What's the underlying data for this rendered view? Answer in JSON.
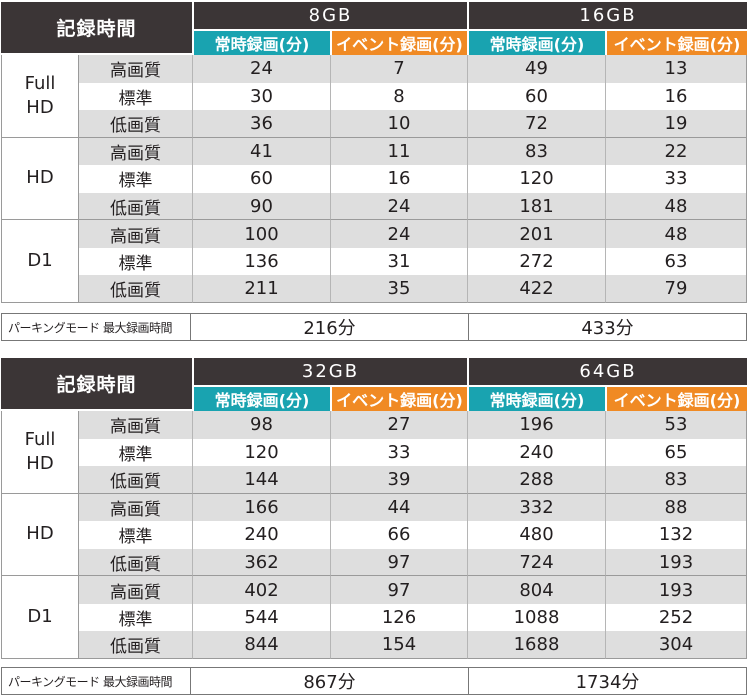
{
  "tables": [
    {
      "header_label": "記録時間",
      "capacities": [
        "8GB",
        "16GB"
      ],
      "mode_labels": [
        "常時録画(分)",
        "イベント録画(分)"
      ],
      "groups": [
        {
          "resolution": "Full\nHD",
          "rows": [
            {
              "quality": "高画質",
              "values": [
                "24",
                "7",
                "49",
                "13"
              ]
            },
            {
              "quality": "標準",
              "values": [
                "30",
                "8",
                "60",
                "16"
              ]
            },
            {
              "quality": "低画質",
              "values": [
                "36",
                "10",
                "72",
                "19"
              ]
            }
          ]
        },
        {
          "resolution": "HD",
          "rows": [
            {
              "quality": "高画質",
              "values": [
                "41",
                "11",
                "83",
                "22"
              ]
            },
            {
              "quality": "標準",
              "values": [
                "60",
                "16",
                "120",
                "33"
              ]
            },
            {
              "quality": "低画質",
              "values": [
                "90",
                "24",
                "181",
                "48"
              ]
            }
          ]
        },
        {
          "resolution": "D1",
          "rows": [
            {
              "quality": "高画質",
              "values": [
                "100",
                "24",
                "201",
                "48"
              ]
            },
            {
              "quality": "標準",
              "values": [
                "136",
                "31",
                "272",
                "63"
              ]
            },
            {
              "quality": "低画質",
              "values": [
                "211",
                "35",
                "422",
                "79"
              ]
            }
          ]
        }
      ],
      "parking": {
        "label": "パーキングモード 最大録画時間",
        "values": [
          "216分",
          "433分"
        ]
      }
    },
    {
      "header_label": "記録時間",
      "capacities": [
        "32GB",
        "64GB"
      ],
      "mode_labels": [
        "常時録画(分)",
        "イベント録画(分)"
      ],
      "groups": [
        {
          "resolution": "Full\nHD",
          "rows": [
            {
              "quality": "高画質",
              "values": [
                "98",
                "27",
                "196",
                "53"
              ]
            },
            {
              "quality": "標準",
              "values": [
                "120",
                "33",
                "240",
                "65"
              ]
            },
            {
              "quality": "低画質",
              "values": [
                "144",
                "39",
                "288",
                "83"
              ]
            }
          ]
        },
        {
          "resolution": "HD",
          "rows": [
            {
              "quality": "高画質",
              "values": [
                "166",
                "44",
                "332",
                "88"
              ]
            },
            {
              "quality": "標準",
              "values": [
                "240",
                "66",
                "480",
                "132"
              ]
            },
            {
              "quality": "低画質",
              "values": [
                "362",
                "97",
                "724",
                "193"
              ]
            }
          ]
        },
        {
          "resolution": "D1",
          "rows": [
            {
              "quality": "高画質",
              "values": [
                "402",
                "97",
                "804",
                "193"
              ]
            },
            {
              "quality": "標準",
              "values": [
                "544",
                "126",
                "1088",
                "252"
              ]
            },
            {
              "quality": "低画質",
              "values": [
                "844",
                "154",
                "1688",
                "304"
              ]
            }
          ]
        }
      ],
      "parking": {
        "label": "パーキングモード 最大録画時間",
        "values": [
          "867分",
          "1734分"
        ]
      }
    }
  ],
  "colors": {
    "header_dark": "#3b3536",
    "constant_teal": "#19a3b0",
    "event_orange": "#f08a24",
    "row_shade": "#dedede"
  }
}
